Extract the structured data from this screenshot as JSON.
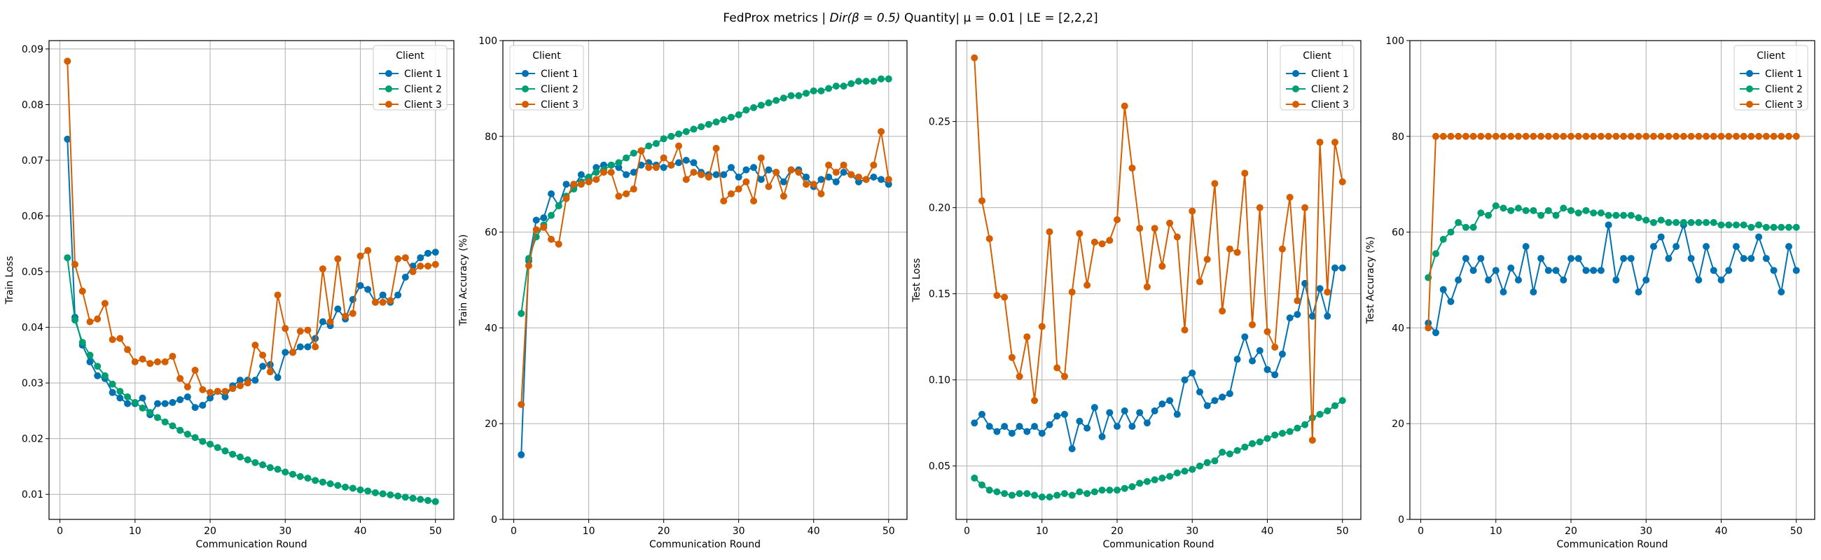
{
  "figure": {
    "title_prefix": "FedProx metrics | ",
    "title_math": "Dir(β = 0.5)",
    "title_suffix": " Quantity| μ = 0.01 | LE = [2,2,2]"
  },
  "colors": {
    "Client 1": "#0072B2",
    "Client 2": "#009E73",
    "Client 3": "#D55E00"
  },
  "chart_data": [
    {
      "type": "line",
      "xlabel": "Communication Round",
      "ylabel": "Train Loss",
      "xlim": [
        -1.45,
        52.45
      ],
      "ylim": [
        0.0055,
        0.0915
      ],
      "xticks": [
        0,
        10,
        20,
        30,
        40,
        50
      ],
      "yticks": [
        0.01,
        0.02,
        0.03,
        0.04,
        0.05,
        0.06,
        0.07,
        0.08,
        0.09
      ],
      "grid": true,
      "legend": {
        "title": "Client",
        "placement": "top-right"
      },
      "x": [
        1,
        2,
        3,
        4,
        5,
        6,
        7,
        8,
        9,
        10,
        11,
        12,
        13,
        14,
        15,
        16,
        17,
        18,
        19,
        20,
        21,
        22,
        23,
        24,
        25,
        26,
        27,
        28,
        29,
        30,
        31,
        32,
        33,
        34,
        35,
        36,
        37,
        38,
        39,
        40,
        41,
        42,
        43,
        44,
        45,
        46,
        47,
        48,
        49,
        50
      ],
      "series": [
        {
          "name": "Client 1",
          "values": [
            0.0738,
            0.0418,
            0.0368,
            0.0338,
            0.0313,
            0.0308,
            0.0283,
            0.0273,
            0.0263,
            0.0263,
            0.0273,
            0.0243,
            0.0263,
            0.0263,
            0.0265,
            0.027,
            0.0275,
            0.0256,
            0.026,
            0.0273,
            0.0285,
            0.0275,
            0.0295,
            0.0305,
            0.0305,
            0.0305,
            0.033,
            0.0333,
            0.031,
            0.0355,
            0.0355,
            0.0365,
            0.0365,
            0.038,
            0.041,
            0.0403,
            0.0433,
            0.0415,
            0.045,
            0.0475,
            0.0468,
            0.0445,
            0.0458,
            0.0445,
            0.0458,
            0.049,
            0.051,
            0.0525,
            0.0533,
            0.0535
          ]
        },
        {
          "name": "Client 2",
          "values": [
            0.0525,
            0.0413,
            0.0373,
            0.035,
            0.033,
            0.0313,
            0.0298,
            0.0285,
            0.0275,
            0.0265,
            0.0255,
            0.0247,
            0.0238,
            0.023,
            0.0223,
            0.0215,
            0.0208,
            0.0202,
            0.0195,
            0.019,
            0.0184,
            0.0178,
            0.0172,
            0.0167,
            0.0162,
            0.0157,
            0.0153,
            0.0148,
            0.0145,
            0.014,
            0.0136,
            0.0132,
            0.0129,
            0.0125,
            0.0122,
            0.0119,
            0.0116,
            0.0113,
            0.0111,
            0.0108,
            0.0106,
            0.0103,
            0.0101,
            0.0099,
            0.0097,
            0.0095,
            0.0093,
            0.0091,
            0.0089,
            0.0087
          ]
        },
        {
          "name": "Client 3",
          "values": [
            0.0878,
            0.0513,
            0.0465,
            0.041,
            0.0415,
            0.0443,
            0.0378,
            0.038,
            0.036,
            0.0338,
            0.0343,
            0.0335,
            0.0338,
            0.0338,
            0.0348,
            0.0308,
            0.0293,
            0.0323,
            0.0288,
            0.0283,
            0.0285,
            0.0285,
            0.029,
            0.0295,
            0.03,
            0.0368,
            0.035,
            0.032,
            0.0458,
            0.0398,
            0.0355,
            0.0393,
            0.0395,
            0.0365,
            0.0505,
            0.041,
            0.0523,
            0.042,
            0.0425,
            0.0528,
            0.0538,
            0.0445,
            0.0445,
            0.0448,
            0.0523,
            0.0525,
            0.05,
            0.051,
            0.051,
            0.0513
          ]
        }
      ]
    },
    {
      "type": "line",
      "xlabel": "Communication Round",
      "ylabel": "Train Accuracy (%)",
      "xlim": [
        -1.45,
        52.45
      ],
      "ylim": [
        0,
        100
      ],
      "xticks": [
        0,
        10,
        20,
        30,
        40,
        50
      ],
      "yticks": [
        0,
        20,
        40,
        60,
        80,
        100
      ],
      "grid": true,
      "legend": {
        "title": "Client",
        "placement": "top-left"
      },
      "x": [
        1,
        2,
        3,
        4,
        5,
        6,
        7,
        8,
        9,
        10,
        11,
        12,
        13,
        14,
        15,
        16,
        17,
        18,
        19,
        20,
        21,
        22,
        23,
        24,
        25,
        26,
        27,
        28,
        29,
        30,
        31,
        32,
        33,
        34,
        35,
        36,
        37,
        38,
        39,
        40,
        41,
        42,
        43,
        44,
        45,
        46,
        47,
        48,
        49,
        50
      ],
      "series": [
        {
          "name": "Client 1",
          "values": [
            13.5,
            54.0,
            62.5,
            63.0,
            68.0,
            65.5,
            70.0,
            69.5,
            72.0,
            71.0,
            73.5,
            74.0,
            74.0,
            73.5,
            72.0,
            72.5,
            74.0,
            74.5,
            74.0,
            73.5,
            74.0,
            74.5,
            75.0,
            74.5,
            72.5,
            72.0,
            72.0,
            72.0,
            73.5,
            71.5,
            73.0,
            73.5,
            71.0,
            73.0,
            72.5,
            70.5,
            73.0,
            73.0,
            71.5,
            69.5,
            71.0,
            71.5,
            70.5,
            72.5,
            72.0,
            70.5,
            71.0,
            71.5,
            71.0,
            70.0
          ]
        },
        {
          "name": "Client 2",
          "values": [
            43.0,
            54.5,
            59.0,
            61.5,
            63.5,
            65.5,
            67.5,
            69.0,
            70.5,
            71.5,
            72.5,
            73.0,
            74.0,
            74.5,
            75.5,
            76.5,
            77.0,
            78.0,
            78.5,
            79.5,
            80.0,
            80.5,
            81.0,
            81.5,
            82.0,
            82.5,
            83.0,
            83.5,
            84.0,
            84.5,
            85.5,
            86.0,
            86.5,
            87.0,
            87.5,
            88.0,
            88.5,
            88.5,
            89.0,
            89.5,
            89.5,
            90.0,
            90.5,
            90.5,
            91.0,
            91.5,
            91.5,
            91.5,
            92.0,
            92.0
          ]
        },
        {
          "name": "Client 3",
          "values": [
            24.0,
            53.0,
            60.5,
            61.0,
            58.5,
            57.5,
            67.0,
            70.0,
            70.0,
            70.5,
            71.0,
            72.5,
            72.5,
            67.5,
            68.0,
            69.0,
            77.0,
            73.5,
            73.5,
            75.5,
            74.0,
            78.0,
            71.0,
            72.5,
            72.0,
            71.5,
            77.5,
            66.5,
            68.0,
            69.0,
            70.5,
            66.5,
            75.5,
            69.5,
            72.5,
            67.5,
            73.0,
            72.5,
            70.0,
            70.0,
            68.0,
            74.0,
            72.5,
            74.0,
            72.0,
            71.5,
            71.0,
            74.0,
            81.0,
            71.0
          ]
        }
      ]
    },
    {
      "type": "line",
      "xlabel": "Communication Round",
      "ylabel": "Test Loss",
      "xlim": [
        -1.45,
        52.45
      ],
      "ylim": [
        0.019,
        0.297
      ],
      "xticks": [
        0,
        10,
        20,
        30,
        40,
        50
      ],
      "yticks": [
        0.05,
        0.1,
        0.15,
        0.2,
        0.25
      ],
      "grid": true,
      "legend": {
        "title": "Client",
        "placement": "top-right"
      },
      "x": [
        1,
        2,
        3,
        4,
        5,
        6,
        7,
        8,
        9,
        10,
        11,
        12,
        13,
        14,
        15,
        16,
        17,
        18,
        19,
        20,
        21,
        22,
        23,
        24,
        25,
        26,
        27,
        28,
        29,
        30,
        31,
        32,
        33,
        34,
        35,
        36,
        37,
        38,
        39,
        40,
        41,
        42,
        43,
        44,
        45,
        46,
        47,
        48,
        49,
        50
      ],
      "series": [
        {
          "name": "Client 1",
          "values": [
            0.075,
            0.08,
            0.073,
            0.07,
            0.073,
            0.069,
            0.073,
            0.07,
            0.073,
            0.069,
            0.074,
            0.079,
            0.08,
            0.06,
            0.076,
            0.072,
            0.084,
            0.067,
            0.081,
            0.073,
            0.082,
            0.073,
            0.081,
            0.075,
            0.082,
            0.086,
            0.088,
            0.08,
            0.1,
            0.104,
            0.093,
            0.085,
            0.088,
            0.09,
            0.092,
            0.112,
            0.125,
            0.111,
            0.117,
            0.106,
            0.103,
            0.115,
            0.136,
            0.138,
            0.156,
            0.137,
            0.153,
            0.137,
            0.165,
            0.165
          ]
        },
        {
          "name": "Client 2",
          "values": [
            0.043,
            0.039,
            0.036,
            0.035,
            0.034,
            0.033,
            0.034,
            0.034,
            0.033,
            0.032,
            0.032,
            0.033,
            0.034,
            0.033,
            0.035,
            0.034,
            0.035,
            0.036,
            0.036,
            0.036,
            0.037,
            0.038,
            0.04,
            0.041,
            0.042,
            0.043,
            0.044,
            0.046,
            0.047,
            0.048,
            0.05,
            0.052,
            0.053,
            0.058,
            0.057,
            0.059,
            0.061,
            0.063,
            0.064,
            0.066,
            0.068,
            0.069,
            0.07,
            0.072,
            0.074,
            0.078,
            0.08,
            0.082,
            0.085,
            0.088
          ]
        },
        {
          "name": "Client 3",
          "values": [
            0.287,
            0.204,
            0.182,
            0.149,
            0.148,
            0.113,
            0.102,
            0.125,
            0.088,
            0.131,
            0.186,
            0.107,
            0.102,
            0.151,
            0.185,
            0.155,
            0.18,
            0.179,
            0.181,
            0.193,
            0.259,
            0.223,
            0.188,
            0.154,
            0.188,
            0.166,
            0.191,
            0.183,
            0.129,
            0.198,
            0.157,
            0.17,
            0.214,
            0.14,
            0.176,
            0.174,
            0.22,
            0.132,
            0.2,
            0.128,
            0.119,
            0.176,
            0.206,
            0.146,
            0.2,
            0.065,
            0.238,
            0.151,
            0.238,
            0.215
          ]
        }
      ]
    },
    {
      "type": "line",
      "xlabel": "Communication Round",
      "ylabel": "Test Accuracy (%)",
      "xlim": [
        -1.45,
        52.45
      ],
      "ylim": [
        0,
        100
      ],
      "xticks": [
        0,
        10,
        20,
        30,
        40,
        50
      ],
      "yticks": [
        0,
        20,
        40,
        60,
        80,
        100
      ],
      "grid": true,
      "legend": {
        "title": "Client",
        "placement": "top-right"
      },
      "x": [
        1,
        2,
        3,
        4,
        5,
        6,
        7,
        8,
        9,
        10,
        11,
        12,
        13,
        14,
        15,
        16,
        17,
        18,
        19,
        20,
        21,
        22,
        23,
        24,
        25,
        26,
        27,
        28,
        29,
        30,
        31,
        32,
        33,
        34,
        35,
        36,
        37,
        38,
        39,
        40,
        41,
        42,
        43,
        44,
        45,
        46,
        47,
        48,
        49,
        50
      ],
      "series": [
        {
          "name": "Client 1",
          "values": [
            41.0,
            39.0,
            48.0,
            45.5,
            50.0,
            54.5,
            52.0,
            54.5,
            50.0,
            52.0,
            47.5,
            52.5,
            50.0,
            57.0,
            47.5,
            54.5,
            52.0,
            52.0,
            50.0,
            54.5,
            54.5,
            52.0,
            52.0,
            52.0,
            61.5,
            50.0,
            54.5,
            54.5,
            47.5,
            50.0,
            57.0,
            59.0,
            54.5,
            57.0,
            61.5,
            54.5,
            50.0,
            57.0,
            52.0,
            50.0,
            52.0,
            57.0,
            54.5,
            54.5,
            59.0,
            54.5,
            52.0,
            47.5,
            57.0,
            52.0
          ]
        },
        {
          "name": "Client 2",
          "values": [
            50.5,
            55.5,
            58.5,
            60.0,
            62.0,
            61.0,
            61.0,
            64.0,
            63.5,
            65.5,
            65.0,
            64.5,
            65.0,
            64.5,
            64.5,
            63.5,
            64.5,
            63.5,
            65.0,
            64.5,
            64.0,
            64.5,
            64.0,
            64.0,
            63.5,
            63.5,
            63.5,
            63.5,
            63.0,
            62.5,
            62.0,
            62.5,
            62.0,
            62.0,
            62.0,
            62.0,
            62.0,
            62.0,
            62.0,
            61.5,
            61.5,
            61.5,
            61.5,
            61.0,
            61.5,
            61.0,
            61.0,
            61.0,
            61.0,
            61.0
          ]
        },
        {
          "name": "Client 3",
          "values": [
            40.0,
            80.0,
            80.0,
            80.0,
            80.0,
            80.0,
            80.0,
            80.0,
            80.0,
            80.0,
            80.0,
            80.0,
            80.0,
            80.0,
            80.0,
            80.0,
            80.0,
            80.0,
            80.0,
            80.0,
            80.0,
            80.0,
            80.0,
            80.0,
            80.0,
            80.0,
            80.0,
            80.0,
            80.0,
            80.0,
            80.0,
            80.0,
            80.0,
            80.0,
            80.0,
            80.0,
            80.0,
            80.0,
            80.0,
            80.0,
            80.0,
            80.0,
            80.0,
            80.0,
            80.0,
            80.0,
            80.0,
            80.0,
            80.0,
            80.0
          ]
        }
      ]
    }
  ]
}
